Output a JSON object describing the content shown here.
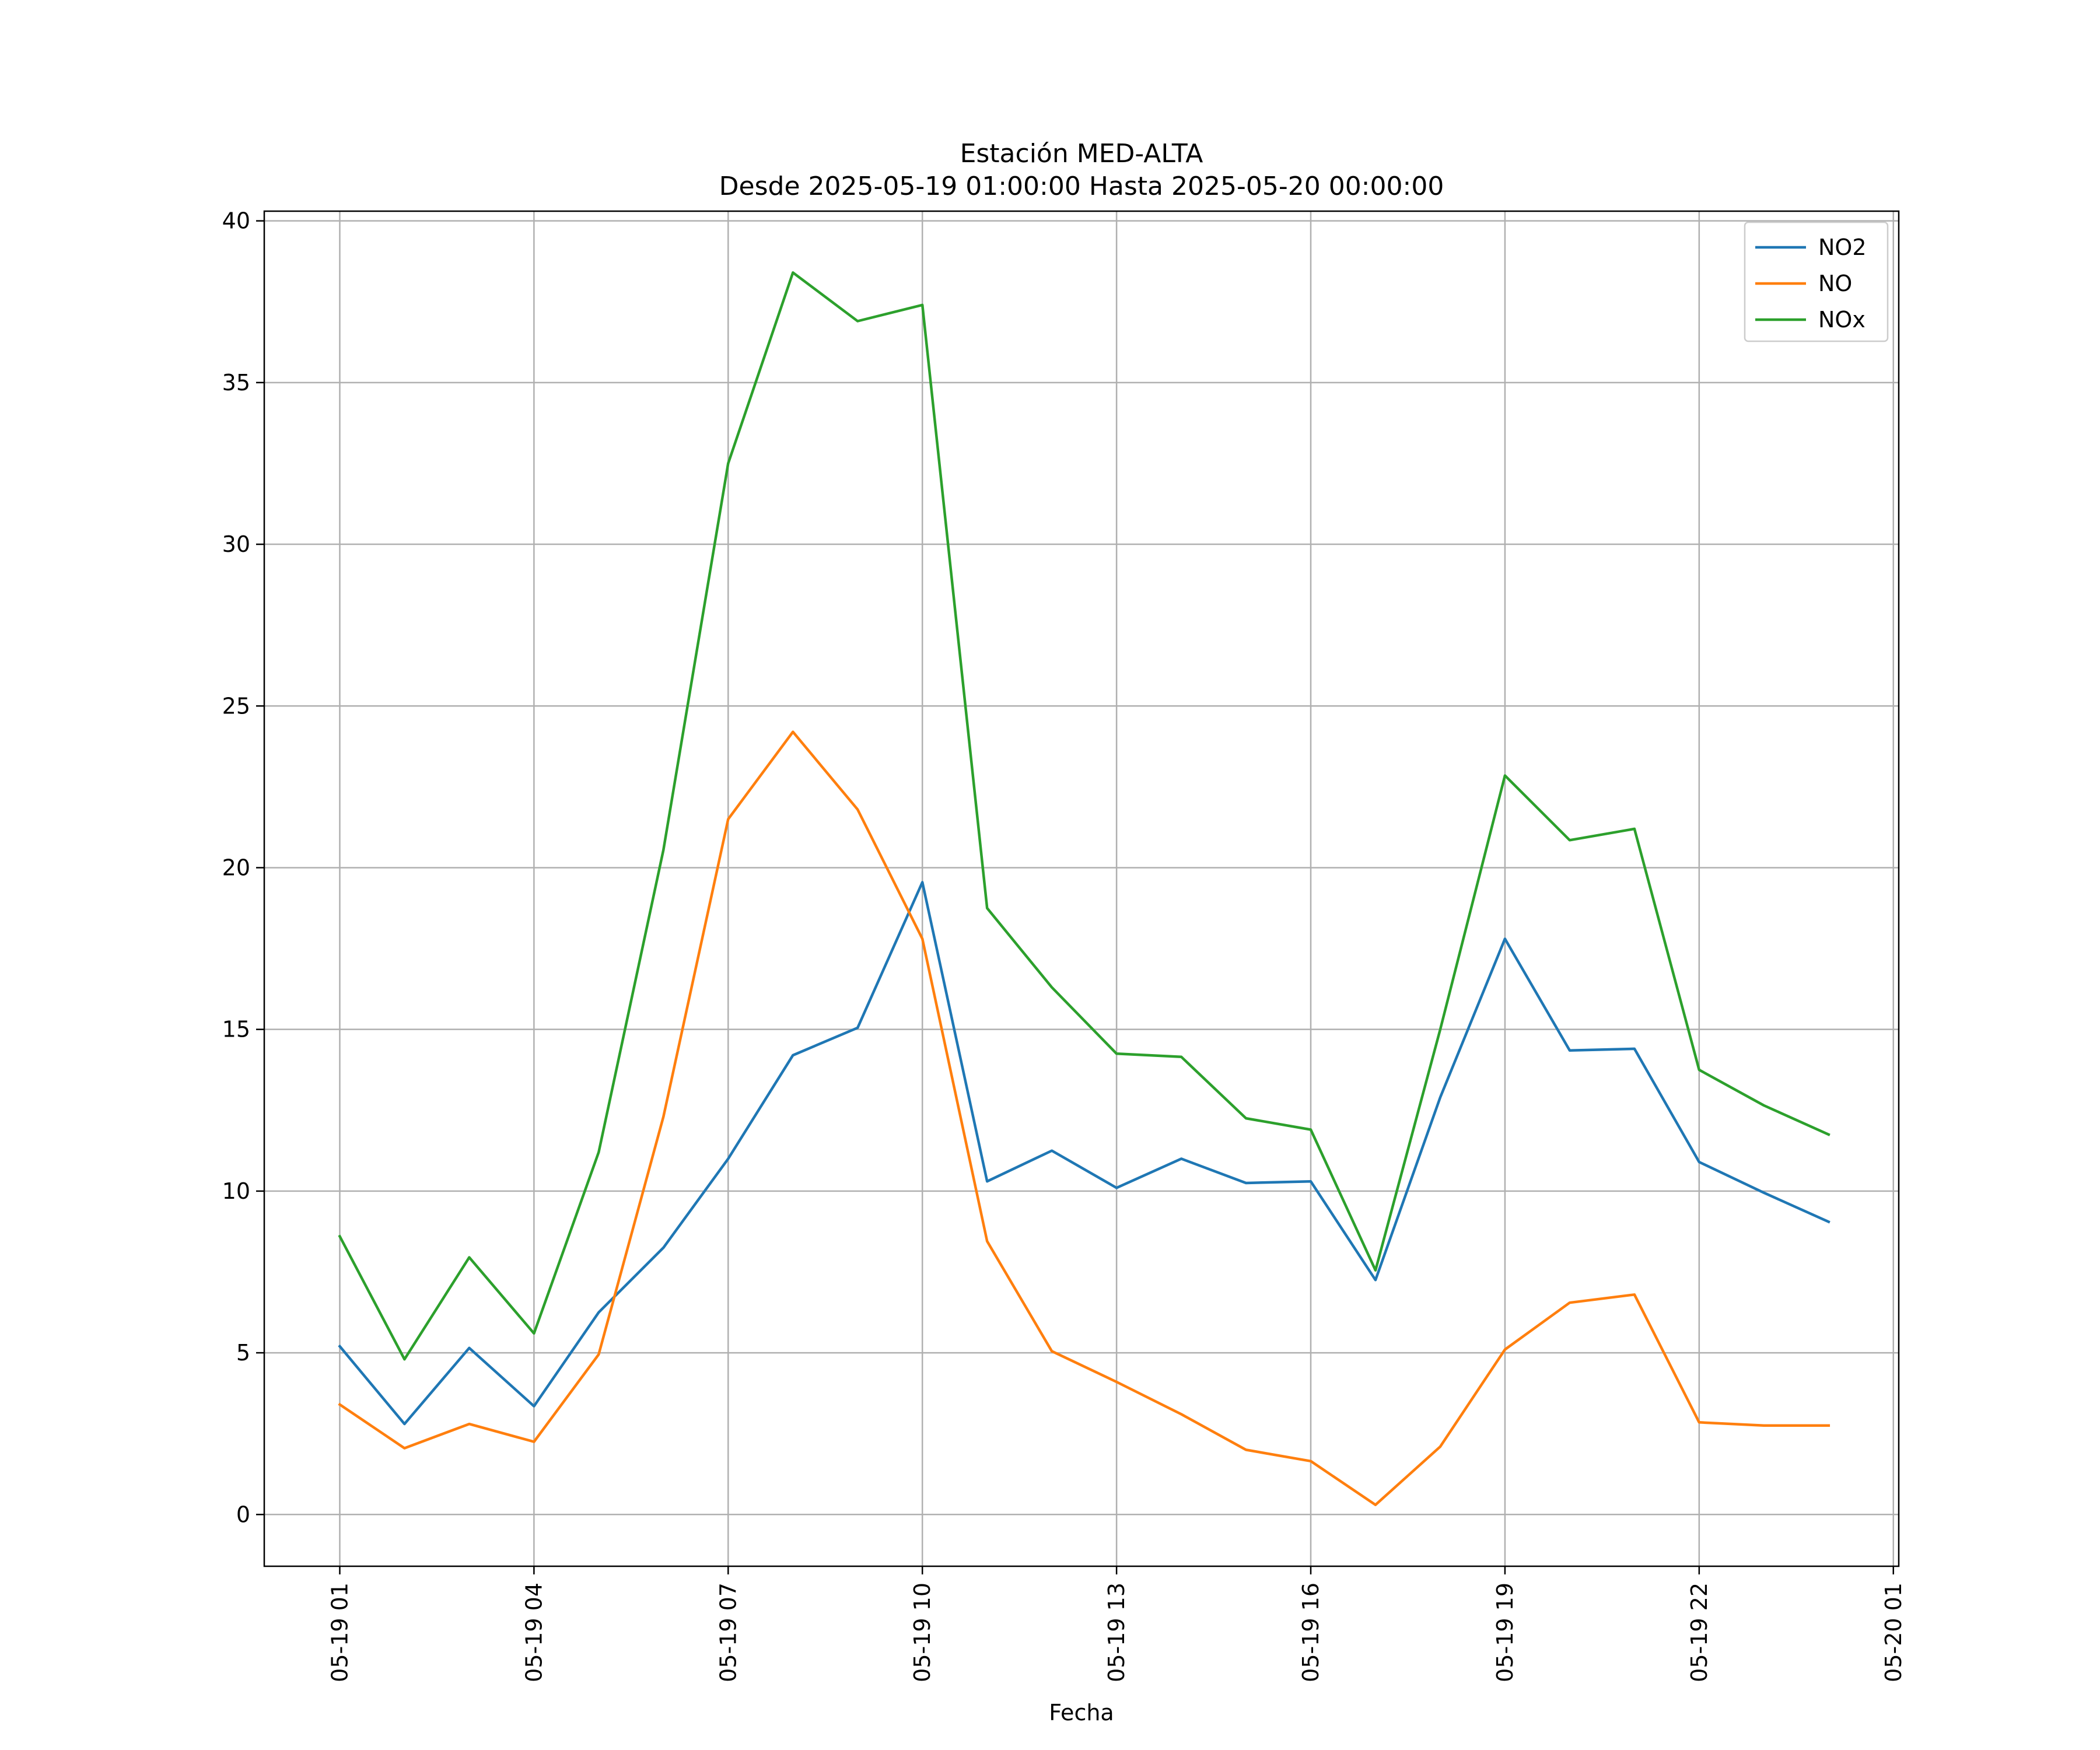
{
  "chart_data": {
    "type": "line",
    "title_lines": [
      "Estación MED-ALTA",
      "Desde 2025-05-19 01:00:00 Hasta 2025-05-20 00:00:00"
    ],
    "xlabel": "Fecha",
    "ylabel": "",
    "x": [
      "2025-05-19 01:00",
      "2025-05-19 02:00",
      "2025-05-19 03:00",
      "2025-05-19 04:00",
      "2025-05-19 05:00",
      "2025-05-19 06:00",
      "2025-05-19 07:00",
      "2025-05-19 08:00",
      "2025-05-19 09:00",
      "2025-05-19 10:00",
      "2025-05-19 11:00",
      "2025-05-19 12:00",
      "2025-05-19 13:00",
      "2025-05-19 14:00",
      "2025-05-19 15:00",
      "2025-05-19 16:00",
      "2025-05-19 17:00",
      "2025-05-19 18:00",
      "2025-05-19 19:00",
      "2025-05-19 20:00",
      "2025-05-19 21:00",
      "2025-05-19 22:00",
      "2025-05-19 23:00",
      "2025-05-20 00:00"
    ],
    "xlim": [
      "2025-05-18 23:50",
      "2025-05-20 01:05"
    ],
    "x_ticks": [
      {
        "at": "2025-05-19 01:00",
        "label": "05-19 01"
      },
      {
        "at": "2025-05-19 04:00",
        "label": "05-19 04"
      },
      {
        "at": "2025-05-19 07:00",
        "label": "05-19 07"
      },
      {
        "at": "2025-05-19 10:00",
        "label": "05-19 10"
      },
      {
        "at": "2025-05-19 13:00",
        "label": "05-19 13"
      },
      {
        "at": "2025-05-19 16:00",
        "label": "05-19 16"
      },
      {
        "at": "2025-05-19 19:00",
        "label": "05-19 19"
      },
      {
        "at": "2025-05-19 22:00",
        "label": "05-19 22"
      },
      {
        "at": "2025-05-20 01:00",
        "label": "05-20 01"
      }
    ],
    "ylim": [
      -1.6,
      40.3
    ],
    "y_ticks": [
      0,
      5,
      10,
      15,
      20,
      25,
      30,
      35,
      40
    ],
    "grid": true,
    "legend_position": "top-right",
    "series": [
      {
        "name": "NO2",
        "color": "#1f77b4",
        "values": [
          5.2,
          2.8,
          5.15,
          3.35,
          6.25,
          8.25,
          11.0,
          14.2,
          15.05,
          19.55,
          10.3,
          11.25,
          10.1,
          11.0,
          10.25,
          10.3,
          7.25,
          12.9,
          17.8,
          14.35,
          14.4,
          10.9,
          9.95,
          9.05
        ]
      },
      {
        "name": "NO",
        "color": "#ff7f0e",
        "values": [
          3.4,
          2.05,
          2.8,
          2.25,
          4.95,
          12.3,
          21.5,
          24.2,
          21.8,
          17.8,
          8.45,
          5.05,
          4.1,
          3.1,
          2.0,
          1.65,
          0.3,
          2.1,
          5.1,
          6.55,
          6.8,
          2.85,
          2.75,
          2.75
        ]
      },
      {
        "name": "NOx",
        "color": "#2ca02c",
        "values": [
          8.6,
          4.8,
          7.95,
          5.6,
          11.2,
          20.55,
          32.5,
          38.4,
          36.9,
          37.4,
          18.75,
          16.3,
          14.25,
          14.15,
          12.25,
          11.9,
          7.55,
          15.0,
          22.85,
          20.85,
          21.2,
          13.75,
          12.65,
          11.75
        ]
      }
    ]
  }
}
